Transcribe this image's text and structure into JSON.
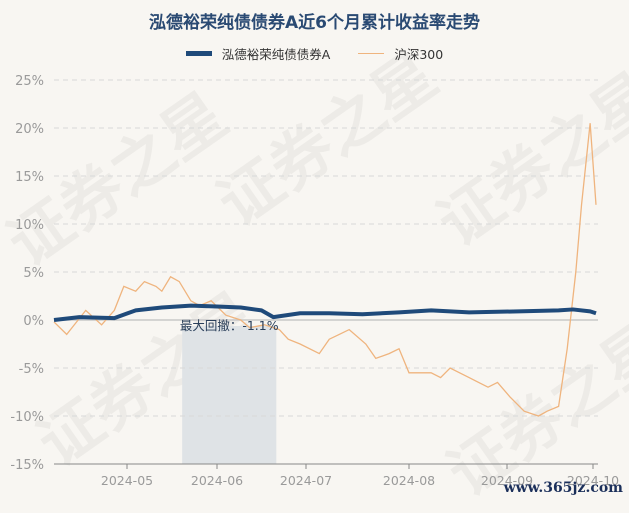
{
  "chart_data": {
    "type": "line",
    "title": "泓德裕荣纯债债券A近6个月累计收益率走势",
    "xlabel": "",
    "ylabel": "",
    "ylim": [
      -15,
      25
    ],
    "yticks": [
      "25%",
      "20%",
      "15%",
      "10%",
      "5%",
      "0%",
      "-5%",
      "-10%",
      "-15%"
    ],
    "ytick_values": [
      25,
      20,
      15,
      10,
      5,
      0,
      -5,
      -10,
      -15
    ],
    "xticks": [
      "2024-05",
      "2024-06",
      "2024-07",
      "2024-08",
      "2024-09",
      "2024-10"
    ],
    "grid": true,
    "legend_placement": "top-center",
    "series": [
      {
        "name": "泓德裕荣纯债债券A",
        "color": "#1f4a7a",
        "x": [
          "2024-04-08",
          "2024-04-16",
          "2024-04-27",
          "2024-05-04",
          "2024-05-13",
          "2024-05-23",
          "2024-06-01",
          "2024-06-09",
          "2024-06-16",
          "2024-06-20",
          "2024-06-29",
          "2024-07-08",
          "2024-07-18",
          "2024-07-29",
          "2024-08-08",
          "2024-08-20",
          "2024-09-05",
          "2024-09-19",
          "2024-09-24",
          "2024-09-30",
          "2024-10-08"
        ],
        "values": [
          0,
          0.3,
          0.2,
          1.0,
          1.3,
          1.5,
          1.4,
          1.3,
          1.0,
          0.3,
          0.7,
          0.7,
          0.6,
          0.8,
          1.0,
          0.8,
          0.9,
          1.0,
          1.1,
          0.9,
          0.7
        ]
      },
      {
        "name": "沪深300",
        "color": "#efb47e",
        "x": [
          "2024-04-08",
          "2024-04-12",
          "2024-04-18",
          "2024-04-23",
          "2024-04-27",
          "2024-04-30",
          "2024-05-04",
          "2024-05-07",
          "2024-05-11",
          "2024-05-13",
          "2024-05-16",
          "2024-05-19",
          "2024-05-23",
          "2024-05-26",
          "2024-05-30",
          "2024-06-04",
          "2024-06-09",
          "2024-06-12",
          "2024-06-17",
          "2024-06-22",
          "2024-06-25",
          "2024-06-29",
          "2024-07-05",
          "2024-07-08",
          "2024-07-11",
          "2024-07-14",
          "2024-07-19",
          "2024-07-22",
          "2024-07-26",
          "2024-07-29",
          "2024-08-01",
          "2024-08-08",
          "2024-08-11",
          "2024-08-14",
          "2024-08-20",
          "2024-08-26",
          "2024-08-29",
          "2024-09-02",
          "2024-09-07",
          "2024-09-12",
          "2024-09-15",
          "2024-09-19",
          "2024-09-22",
          "2024-09-25",
          "2024-09-27",
          "2024-09-30",
          "2024-10-08"
        ],
        "values": [
          -0.2,
          -1.5,
          1.0,
          -0.5,
          1.0,
          3.5,
          3.0,
          4.0,
          3.5,
          3.0,
          4.5,
          4.0,
          2.0,
          1.5,
          2.0,
          0.5,
          0.0,
          -0.8,
          -0.5,
          -1.0,
          -2.0,
          -2.5,
          -3.5,
          -2.0,
          -1.5,
          -1.0,
          -2.5,
          -4.0,
          -3.5,
          -3.0,
          -5.5,
          -5.5,
          -6.0,
          -5.0,
          -6.0,
          -7.0,
          -6.5,
          -8.0,
          -9.5,
          -10.0,
          -9.5,
          -9.0,
          -3.0,
          5.0,
          12.0,
          20.5,
          12.0
        ]
      }
    ],
    "max_drawdown": {
      "label": "最大回撤：-1.1%",
      "value": -1.1,
      "start": "2024-05-20",
      "end": "2024-06-21"
    }
  },
  "watermark": "证券之星",
  "site_logo": "www.365jz.com"
}
